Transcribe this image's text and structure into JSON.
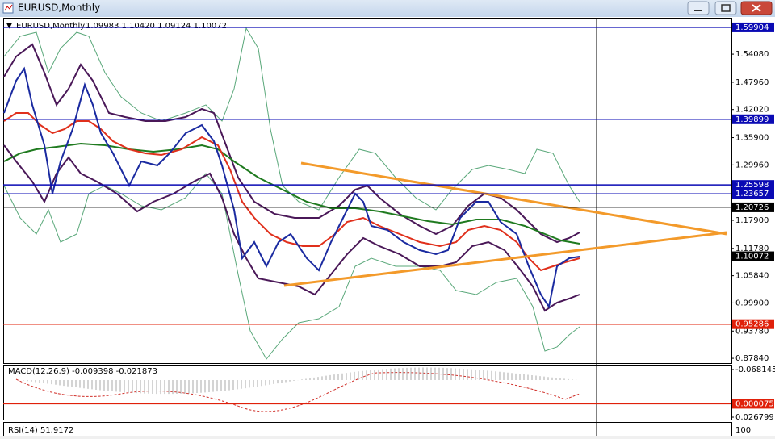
{
  "window": {
    "title": "EURUSD,Monthly"
  },
  "main": {
    "symbol": "EURUSD,Monthly",
    "ohlc": "1.09983 1.10420 1.09124 1.10072",
    "ylim": [
      0.868,
      1.62
    ],
    "yticks": [
      {
        "value": 1.5408,
        "label": "1.54080"
      },
      {
        "value": 1.4796,
        "label": "1.47960"
      },
      {
        "value": 1.4202,
        "label": "1.42020"
      },
      {
        "value": 1.359,
        "label": "1.35900"
      },
      {
        "value": 1.2996,
        "label": "1.29960"
      },
      {
        "value": 1.179,
        "label": "1.17900"
      },
      {
        "value": 1.1178,
        "label": "1.11780"
      },
      {
        "value": 1.0584,
        "label": "1.05840"
      },
      {
        "value": 0.999,
        "label": "0.99900"
      },
      {
        "value": 0.9378,
        "label": "0.93780"
      },
      {
        "value": 0.8784,
        "label": "0.87840"
      }
    ],
    "levels": [
      {
        "value": 1.59904,
        "color": "#0a0ab4",
        "line": true
      },
      {
        "value": 1.39899,
        "color": "#0a0ab4",
        "line": true
      },
      {
        "value": 1.25598,
        "color": "#0a0ab4",
        "line": true
      },
      {
        "value": 1.23657,
        "color": "#0a0ab4",
        "line": true
      },
      {
        "value": 1.20726,
        "color": "#000000",
        "line": true
      },
      {
        "value": 1.10072,
        "color": "#000000",
        "line": false
      },
      {
        "value": 0.95286,
        "color": "#e0200a",
        "line": true
      }
    ]
  },
  "macd": {
    "label": "MACD(12,26,9) -0.009398 -0.021873",
    "ylim": [
      0.0332,
      -0.0778
    ],
    "yticks": [
      0.026799,
      -0.068145
    ],
    "levels": [
      {
        "value": 7.5e-05,
        "color": "#e0200a",
        "line": true
      }
    ]
  },
  "rsi": {
    "label": "RSI(14) 51.9172",
    "yticks": [
      100
    ]
  }
}
